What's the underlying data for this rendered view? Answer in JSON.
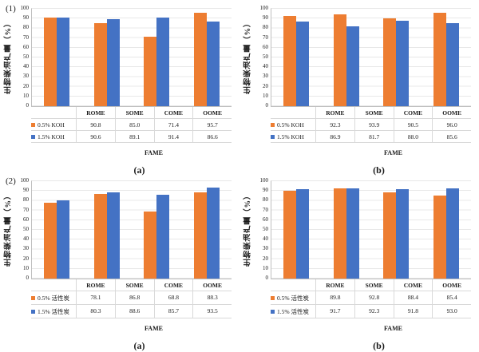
{
  "colors": {
    "series1": "#ED7D31",
    "series2": "#4472C4",
    "gridline": "#E8E8E8",
    "axis": "#BFBFBF",
    "table_border": "#D9D9D9"
  },
  "chart_data": [
    {
      "type": "bar",
      "marker": "(1)",
      "sublabel": "(a)",
      "title": "",
      "ylabel": "生物柴油产量（%）",
      "xlabel": "FAME",
      "ylim": [
        0,
        100
      ],
      "ytick_step": 10,
      "grid": true,
      "legend_position": "table-left",
      "categories": [
        "ROME",
        "SOME",
        "COME",
        "OOME"
      ],
      "series": [
        {
          "name": "0.5% KOH",
          "color": "#ED7D31",
          "values": [
            90.8,
            85.0,
            71.4,
            95.7
          ]
        },
        {
          "name": "1.5% KOH",
          "color": "#4472C4",
          "values": [
            90.6,
            89.1,
            91.4,
            86.6
          ]
        }
      ]
    },
    {
      "type": "bar",
      "marker": "",
      "sublabel": "(b)",
      "title": "",
      "ylabel": "生物柴油产量（%）",
      "xlabel": "FAME",
      "ylim": [
        0,
        100
      ],
      "ytick_step": 10,
      "grid": true,
      "legend_position": "table-left",
      "categories": [
        "ROME",
        "SOME",
        "COME",
        "OOME"
      ],
      "series": [
        {
          "name": "0.5% KOH",
          "color": "#ED7D31",
          "values": [
            92.3,
            93.9,
            90.5,
            96.0
          ]
        },
        {
          "name": "1.5% KOH",
          "color": "#4472C4",
          "values": [
            86.9,
            81.7,
            88.0,
            85.6
          ]
        }
      ]
    },
    {
      "type": "bar",
      "marker": "(2)",
      "sublabel": "(a)",
      "title": "",
      "ylabel": "生物柴油产量（%）",
      "xlabel": "FAME",
      "ylim": [
        0,
        100
      ],
      "ytick_step": 10,
      "grid": true,
      "legend_position": "table-left",
      "categories": [
        "ROME",
        "SOME",
        "COME",
        "OOME"
      ],
      "series": [
        {
          "name": "0.5% 活性炭",
          "color": "#ED7D31",
          "values": [
            78.1,
            86.8,
            68.8,
            88.3
          ]
        },
        {
          "name": "1.5% 活性炭",
          "color": "#4472C4",
          "values": [
            80.3,
            88.6,
            85.7,
            93.5
          ]
        }
      ]
    },
    {
      "type": "bar",
      "marker": "",
      "sublabel": "(b)",
      "title": "",
      "ylabel": "生物柴油产量（%）",
      "xlabel": "FAME",
      "ylim": [
        0,
        100
      ],
      "ytick_step": 10,
      "grid": true,
      "legend_position": "table-left",
      "categories": [
        "ROME",
        "SOME",
        "COME",
        "OOME"
      ],
      "series": [
        {
          "name": "0.5% 活性炭",
          "color": "#ED7D31",
          "values": [
            89.8,
            92.8,
            88.4,
            85.4
          ]
        },
        {
          "name": "1.5% 活性炭",
          "color": "#4472C4",
          "values": [
            91.7,
            92.3,
            91.8,
            93.0
          ]
        }
      ]
    }
  ]
}
